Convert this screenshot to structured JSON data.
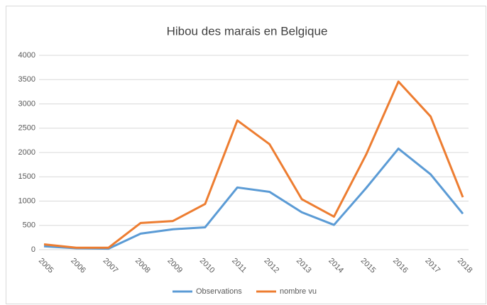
{
  "chart_data": {
    "type": "line",
    "title": "Hibou des marais en Belgique",
    "categories": [
      "2005",
      "2006",
      "2007",
      "2008",
      "2009",
      "2010",
      "2011",
      "2012",
      "2013",
      "2014",
      "2015",
      "2016",
      "2017",
      "2018"
    ],
    "series": [
      {
        "name": "Observations",
        "color": "#5b9bd5",
        "values": [
          70,
          30,
          20,
          330,
          420,
          460,
          1280,
          1190,
          770,
          510,
          1270,
          2080,
          1550,
          740
        ]
      },
      {
        "name": "nombre vu",
        "color": "#ed7d31",
        "values": [
          110,
          40,
          40,
          550,
          590,
          940,
          2660,
          2170,
          1040,
          680,
          1960,
          3460,
          2740,
          1080
        ]
      }
    ],
    "ylim": [
      0,
      4000
    ],
    "yticks": [
      0,
      500,
      1000,
      1500,
      2000,
      2500,
      3000,
      3500,
      4000
    ],
    "grid": true,
    "legend": "bottom"
  }
}
